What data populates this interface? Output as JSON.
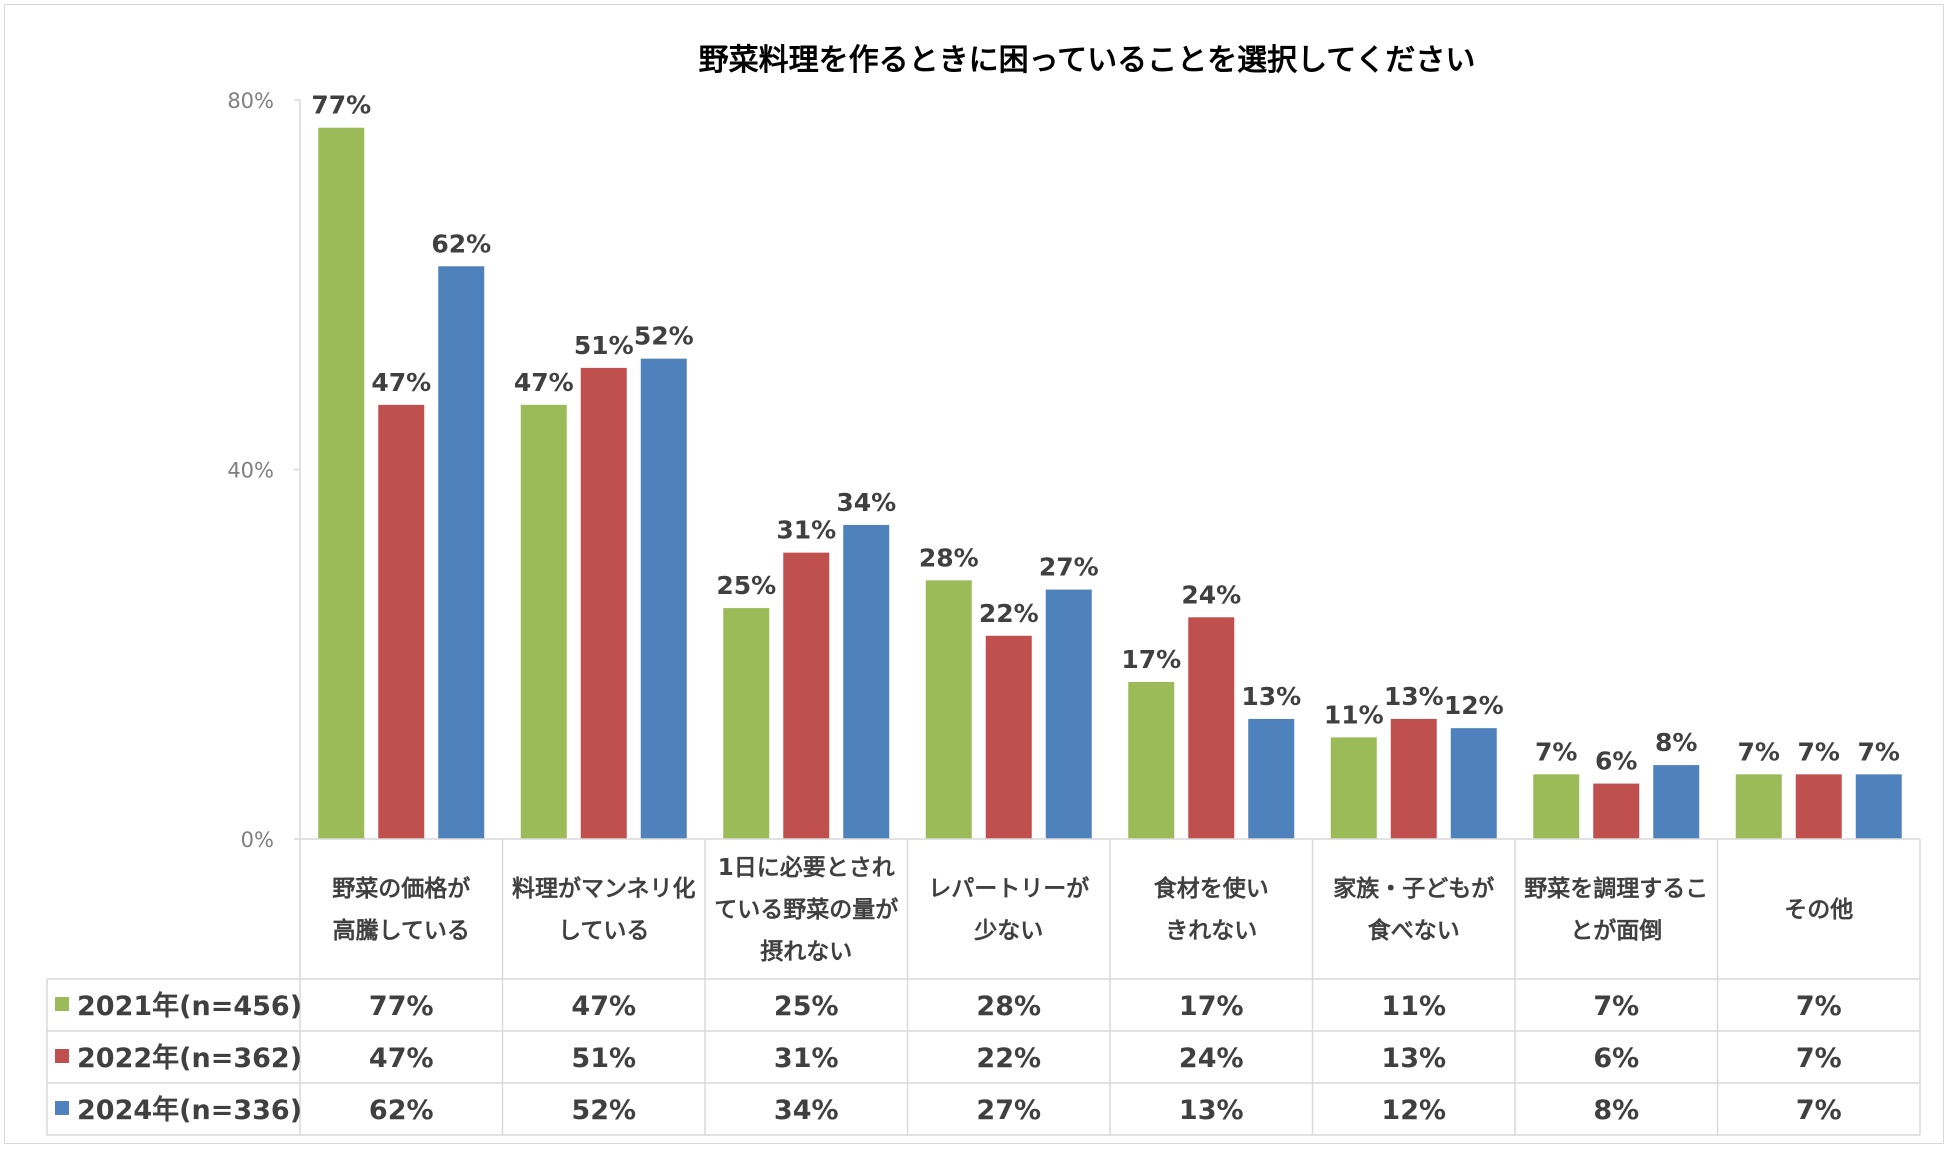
{
  "chart_data": {
    "type": "bar",
    "title": "野菜料理を作るときに困っていることを選択してください",
    "categories": [
      [
        "野菜の価格が",
        "高騰している"
      ],
      [
        "料理がマンネリ化",
        "している"
      ],
      [
        "1日に必要とされ",
        "ている野菜の量が",
        "摂れない"
      ],
      [
        "レパートリーが",
        "少ない"
      ],
      [
        "食材を使い",
        "きれない"
      ],
      [
        "家族・子どもが",
        "食べない"
      ],
      [
        "野菜を調理するこ",
        "とが面倒"
      ],
      [
        "その他"
      ]
    ],
    "series": [
      {
        "name": "2021年(n=456)",
        "color": "#9BBB59",
        "values": [
          77,
          47,
          25,
          28,
          17,
          11,
          7,
          7
        ]
      },
      {
        "name": "2022年(n=362)",
        "color": "#C0504D",
        "values": [
          47,
          51,
          31,
          22,
          24,
          13,
          6,
          7
        ]
      },
      {
        "name": "2024年(n=336)",
        "color": "#4F81BD",
        "values": [
          62,
          52,
          34,
          27,
          13,
          12,
          8,
          7
        ]
      }
    ],
    "y_ticks": [
      "0%",
      "40%",
      "80%"
    ],
    "ylim": [
      0,
      80
    ],
    "data_labels": true,
    "data_table": true,
    "grid": false
  }
}
